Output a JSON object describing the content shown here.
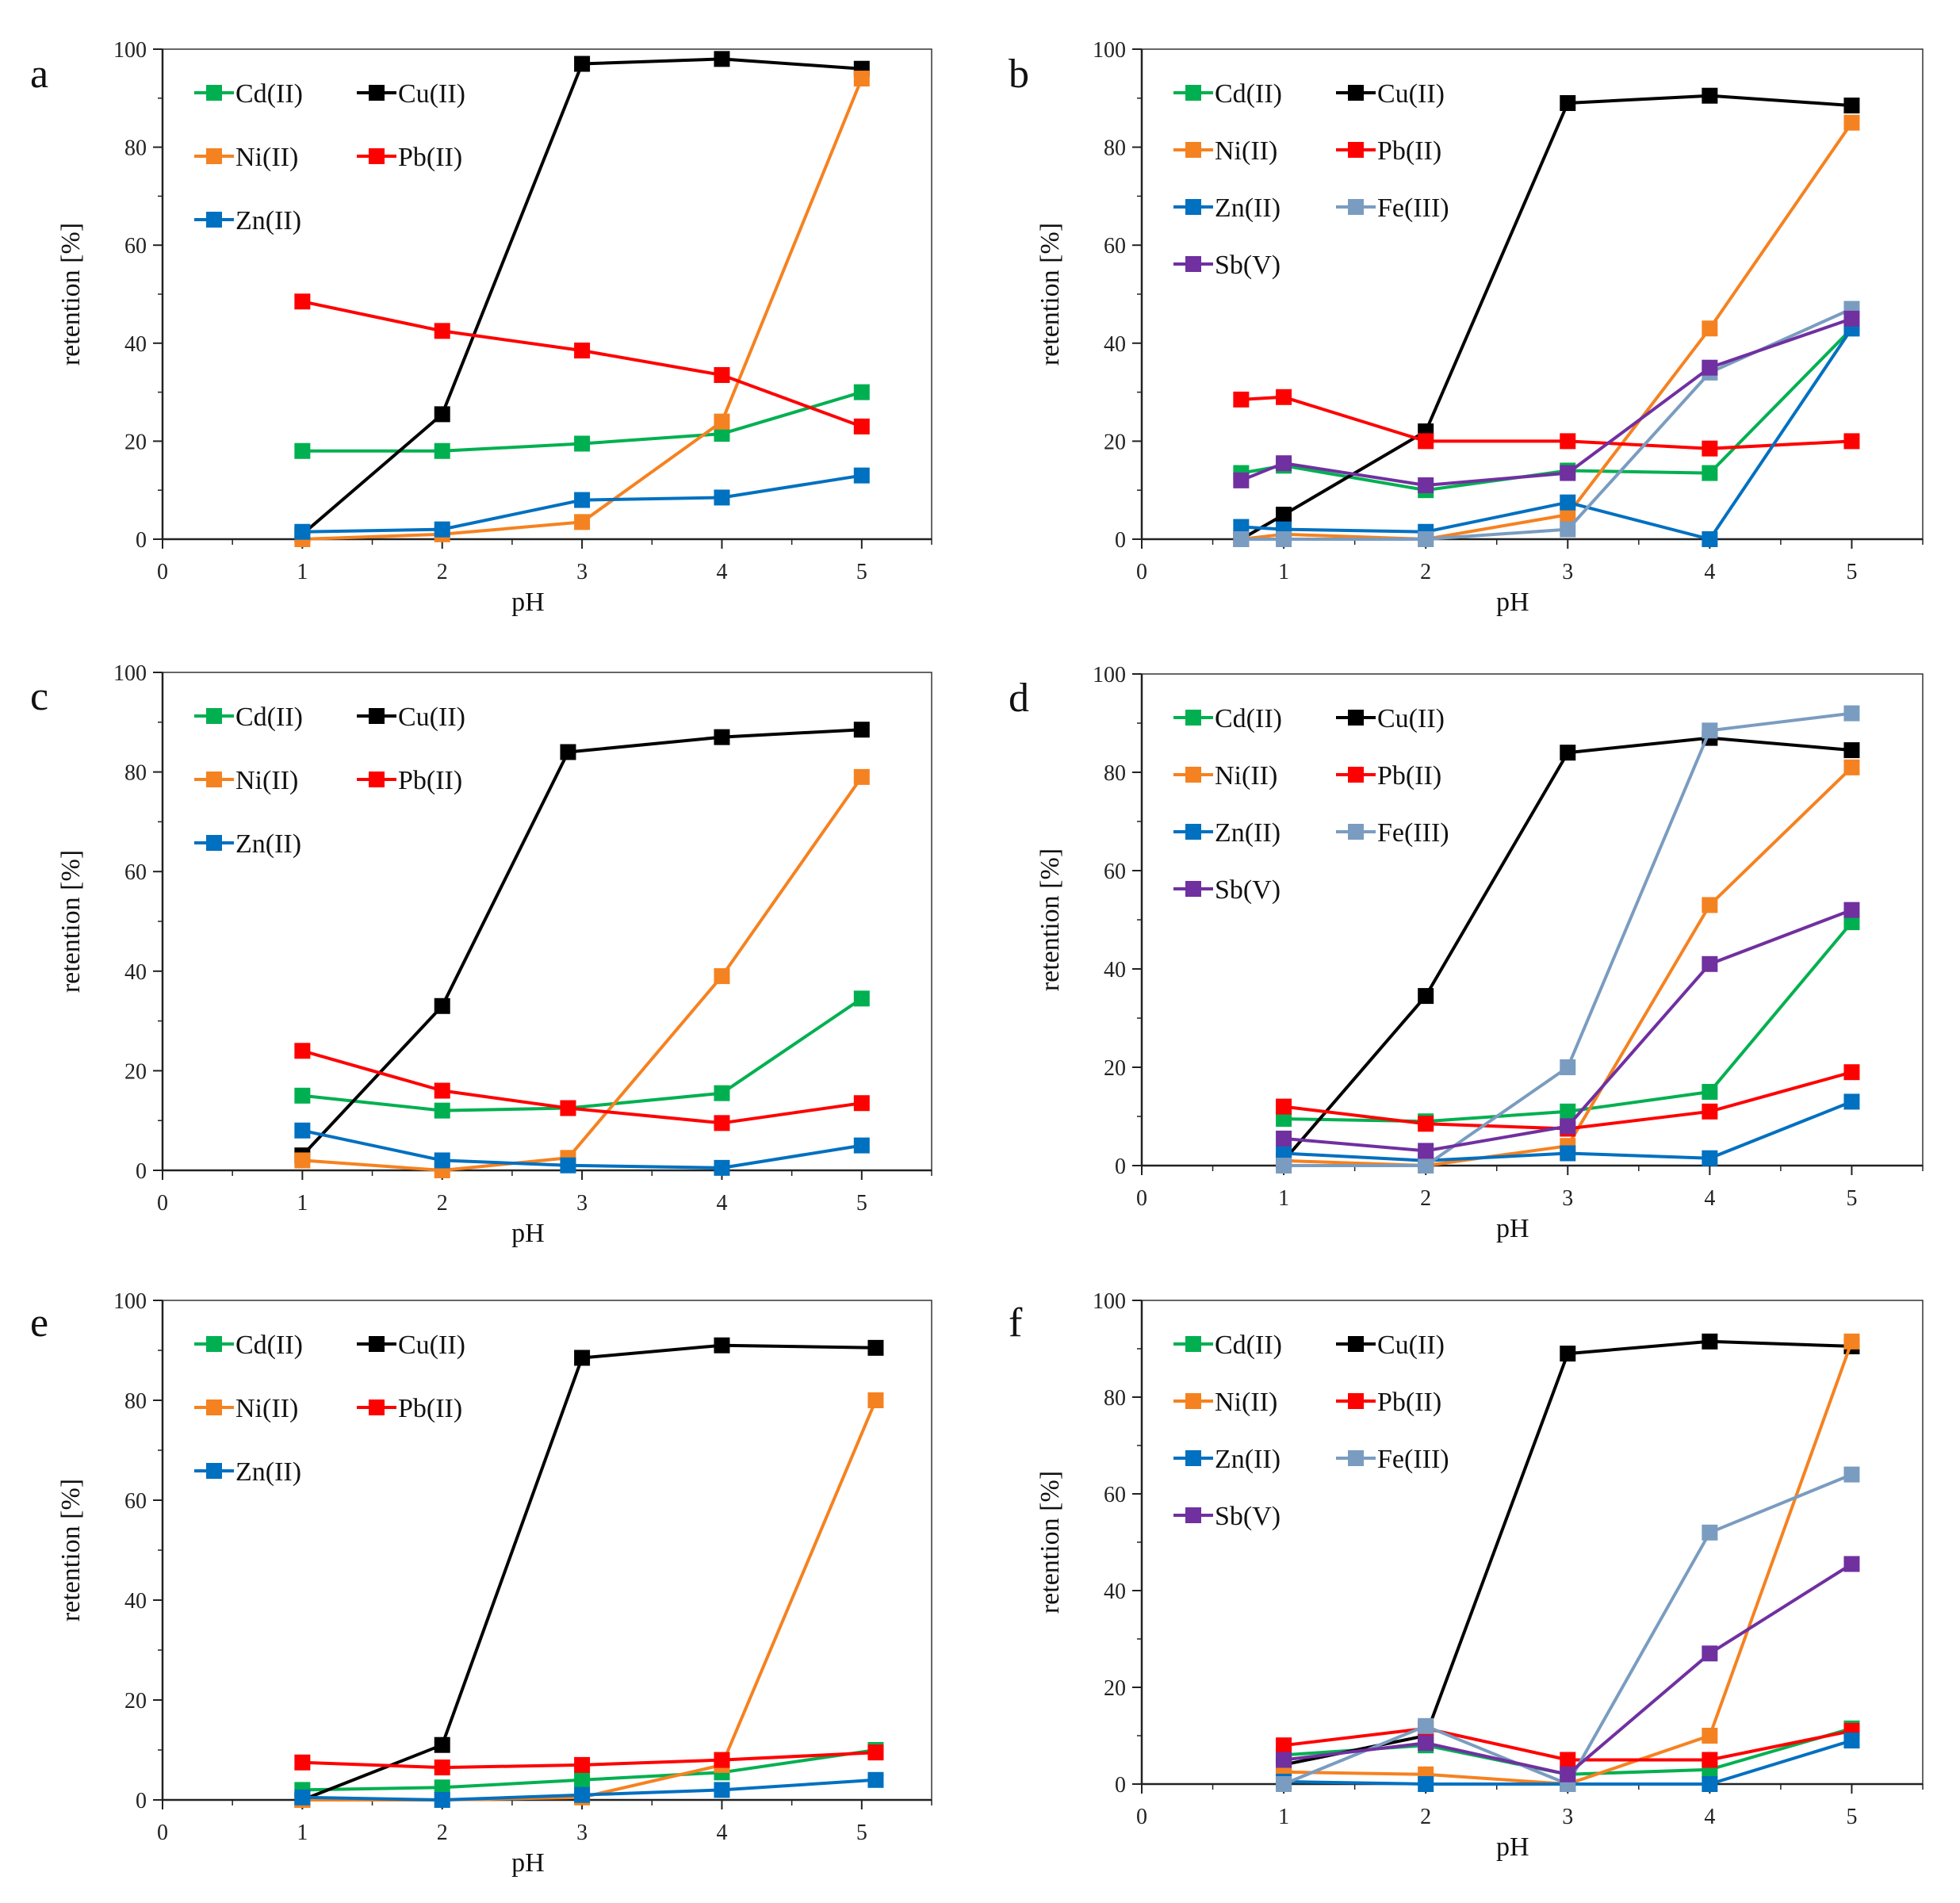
{
  "colors": {
    "Cd(II)": "#00b050",
    "Cu(II)": "#000000",
    "Ni(II)": "#f58220",
    "Pb(II)": "#ff0000",
    "Zn(II)": "#0070c0",
    "Fe(III)": "#7a9cc0",
    "Sb(V)": "#7030a0"
  },
  "chart_data": [
    {
      "panel": "a",
      "type": "line",
      "xlabel": "pH",
      "ylabel": "retention [%]",
      "xlim": [
        0,
        5.5
      ],
      "ylim": [
        0,
        100
      ],
      "xticks": [
        "0",
        "1",
        "2",
        "3",
        "4",
        "5"
      ],
      "yticks": [
        "0",
        "20",
        "40",
        "60",
        "80",
        "100"
      ],
      "legend": [
        "Cd(II)",
        "Cu(II)",
        "Ni(II)",
        "Pb(II)",
        "Zn(II)"
      ],
      "series": [
        {
          "name": "Cd(II)",
          "x": [
            1,
            2,
            3,
            4,
            5
          ],
          "values": [
            18,
            18,
            19.5,
            21.5,
            30
          ]
        },
        {
          "name": "Cu(II)",
          "x": [
            1,
            2,
            3,
            4,
            5
          ],
          "values": [
            1,
            25.5,
            97,
            98,
            96
          ]
        },
        {
          "name": "Ni(II)",
          "x": [
            1,
            2,
            3,
            4,
            5
          ],
          "values": [
            0,
            1,
            3.5,
            24,
            94
          ]
        },
        {
          "name": "Pb(II)",
          "x": [
            1,
            2,
            3,
            4,
            5
          ],
          "values": [
            48.5,
            42.5,
            38.5,
            33.5,
            23
          ]
        },
        {
          "name": "Zn(II)",
          "x": [
            1,
            2,
            3,
            4,
            5
          ],
          "values": [
            1.5,
            2,
            8,
            8.5,
            13
          ]
        }
      ]
    },
    {
      "panel": "b",
      "type": "line",
      "xlabel": "pH",
      "ylabel": "retention [%]",
      "xlim": [
        0,
        5.5
      ],
      "ylim": [
        0,
        100
      ],
      "xticks": [
        "0",
        "1",
        "2",
        "3",
        "4",
        "5"
      ],
      "yticks": [
        "0",
        "20",
        "40",
        "60",
        "80",
        "100"
      ],
      "legend": [
        "Cd(II)",
        "Cu(II)",
        "Ni(II)",
        "Pb(II)",
        "Zn(II)",
        "Fe(III)",
        "Sb(V)"
      ],
      "series": [
        {
          "name": "Cd(II)",
          "x": [
            0.7,
            1,
            2,
            3,
            4,
            5
          ],
          "values": [
            13.5,
            15,
            10,
            14,
            13.5,
            43
          ]
        },
        {
          "name": "Cu(II)",
          "x": [
            0.7,
            1,
            2,
            3,
            4,
            5
          ],
          "values": [
            0,
            5,
            22,
            89,
            90.5,
            88.5
          ]
        },
        {
          "name": "Ni(II)",
          "x": [
            0.7,
            1,
            2,
            3,
            4,
            5
          ],
          "values": [
            0,
            1,
            0,
            5,
            43,
            85
          ]
        },
        {
          "name": "Pb(II)",
          "x": [
            0.7,
            1,
            2,
            3,
            4,
            5
          ],
          "values": [
            28.5,
            29,
            20,
            20,
            18.5,
            20
          ]
        },
        {
          "name": "Zn(II)",
          "x": [
            0.7,
            1,
            2,
            3,
            4,
            5
          ],
          "values": [
            2.5,
            2,
            1.5,
            7.5,
            0,
            43
          ]
        },
        {
          "name": "Fe(III)",
          "x": [
            0.7,
            1,
            2,
            3,
            4,
            5
          ],
          "values": [
            0,
            0,
            0,
            2,
            34,
            47
          ]
        },
        {
          "name": "Sb(V)",
          "x": [
            0.7,
            1,
            2,
            3,
            4,
            5
          ],
          "values": [
            12,
            15.5,
            11,
            13.5,
            35,
            45
          ]
        }
      ]
    },
    {
      "panel": "c",
      "type": "line",
      "xlabel": "pH",
      "ylabel": "retention [%]",
      "xlim": [
        0,
        5.5
      ],
      "ylim": [
        0,
        100
      ],
      "xticks": [
        "0",
        "1",
        "2",
        "3",
        "4",
        "5"
      ],
      "yticks": [
        "0",
        "20",
        "40",
        "60",
        "80",
        "100"
      ],
      "legend": [
        "Cd(II)",
        "Cu(II)",
        "Ni(II)",
        "Pb(II)",
        "Zn(II)"
      ],
      "series": [
        {
          "name": "Cd(II)",
          "x": [
            1,
            2,
            2.9,
            4,
            5
          ],
          "values": [
            15,
            12,
            12.5,
            15.5,
            34.5
          ]
        },
        {
          "name": "Cu(II)",
          "x": [
            1,
            2,
            2.9,
            4,
            5
          ],
          "values": [
            3,
            33,
            84,
            87,
            88.5
          ]
        },
        {
          "name": "Ni(II)",
          "x": [
            1,
            2,
            2.9,
            4,
            5
          ],
          "values": [
            2,
            0,
            2.5,
            39,
            79
          ]
        },
        {
          "name": "Pb(II)",
          "x": [
            1,
            2,
            2.9,
            4,
            5
          ],
          "values": [
            24,
            16,
            12.5,
            9.5,
            13.5
          ]
        },
        {
          "name": "Zn(II)",
          "x": [
            1,
            2,
            2.9,
            4,
            5
          ],
          "values": [
            8,
            2,
            1,
            0.5,
            5
          ]
        }
      ]
    },
    {
      "panel": "d",
      "type": "line",
      "xlabel": "pH",
      "ylabel": "retention [%]",
      "xlim": [
        0,
        5.5
      ],
      "ylim": [
        0,
        100
      ],
      "xticks": [
        "0",
        "1",
        "2",
        "3",
        "4",
        "5"
      ],
      "yticks": [
        "0",
        "20",
        "40",
        "60",
        "80",
        "100"
      ],
      "legend": [
        "Cd(II)",
        "Cu(II)",
        "Ni(II)",
        "Pb(II)",
        "Zn(II)",
        "Fe(III)",
        "Sb(V)"
      ],
      "series": [
        {
          "name": "Cd(II)",
          "x": [
            1,
            2,
            3,
            4,
            5
          ],
          "values": [
            9.5,
            9,
            11,
            15,
            49.5
          ]
        },
        {
          "name": "Cu(II)",
          "x": [
            1,
            2,
            3,
            4,
            5
          ],
          "values": [
            1,
            34.5,
            84,
            87,
            84.5
          ]
        },
        {
          "name": "Ni(II)",
          "x": [
            1,
            2,
            3,
            4,
            5
          ],
          "values": [
            1,
            0,
            4,
            53,
            81
          ]
        },
        {
          "name": "Pb(II)",
          "x": [
            1,
            2,
            3,
            4,
            5
          ],
          "values": [
            12,
            8.5,
            7.5,
            11,
            19
          ]
        },
        {
          "name": "Zn(II)",
          "x": [
            1,
            2,
            3,
            4,
            5
          ],
          "values": [
            2.5,
            1,
            2.5,
            1.5,
            13
          ]
        },
        {
          "name": "Fe(III)",
          "x": [
            1,
            2,
            3,
            4,
            5
          ],
          "values": [
            0,
            0,
            20,
            88.5,
            92
          ]
        },
        {
          "name": "Sb(V)",
          "x": [
            1,
            2,
            3,
            4,
            5
          ],
          "values": [
            5.5,
            3,
            8,
            41,
            52
          ]
        }
      ]
    },
    {
      "panel": "e",
      "type": "line",
      "xlabel": "pH",
      "ylabel": "retention [%]",
      "xlim": [
        0,
        5.5
      ],
      "ylim": [
        0,
        100
      ],
      "xticks": [
        "0",
        "1",
        "2",
        "3",
        "4",
        "5"
      ],
      "yticks": [
        "0",
        "20",
        "40",
        "60",
        "80",
        "100"
      ],
      "legend": [
        "Cd(II)",
        "Cu(II)",
        "Ni(II)",
        "Pb(II)",
        "Zn(II)"
      ],
      "series": [
        {
          "name": "Cd(II)",
          "x": [
            1,
            2,
            3,
            4,
            5.1
          ],
          "values": [
            2,
            2.5,
            4,
            5.5,
            10
          ]
        },
        {
          "name": "Cu(II)",
          "x": [
            1,
            2,
            3,
            4,
            5.1
          ],
          "values": [
            0,
            11,
            88.5,
            91,
            90.5
          ]
        },
        {
          "name": "Ni(II)",
          "x": [
            1,
            2,
            3,
            4,
            5.1
          ],
          "values": [
            0,
            0,
            0.5,
            7,
            80
          ]
        },
        {
          "name": "Pb(II)",
          "x": [
            1,
            2,
            3,
            4,
            5.1
          ],
          "values": [
            7.5,
            6.5,
            7,
            8,
            9.5
          ]
        },
        {
          "name": "Zn(II)",
          "x": [
            1,
            2,
            3,
            4,
            5.1
          ],
          "values": [
            0.5,
            0,
            1,
            2,
            4
          ]
        }
      ]
    },
    {
      "panel": "f",
      "type": "line",
      "xlabel": "pH",
      "ylabel": "retention [%]",
      "xlim": [
        0,
        5.5
      ],
      "ylim": [
        0,
        100
      ],
      "xticks": [
        "0",
        "1",
        "2",
        "3",
        "4",
        "5"
      ],
      "yticks": [
        "0",
        "20",
        "40",
        "60",
        "80",
        "100"
      ],
      "legend": [
        "Cd(II)",
        "Cu(II)",
        "Ni(II)",
        "Pb(II)",
        "Zn(II)",
        "Fe(III)",
        "Sb(V)"
      ],
      "series": [
        {
          "name": "Cd(II)",
          "x": [
            1,
            2,
            3,
            4,
            5
          ],
          "values": [
            6,
            8,
            2,
            3,
            11.5
          ]
        },
        {
          "name": "Cu(II)",
          "x": [
            1,
            2,
            3,
            4,
            5
          ],
          "values": [
            4,
            10,
            89,
            91.5,
            90.5
          ]
        },
        {
          "name": "Ni(II)",
          "x": [
            1,
            2,
            3,
            4,
            5
          ],
          "values": [
            2.5,
            2,
            0,
            10,
            91.5
          ]
        },
        {
          "name": "Pb(II)",
          "x": [
            1,
            2,
            3,
            4,
            5
          ],
          "values": [
            8,
            11.5,
            5,
            5,
            11
          ]
        },
        {
          "name": "Zn(II)",
          "x": [
            1,
            2,
            3,
            4,
            5
          ],
          "values": [
            0.5,
            0,
            0,
            0,
            9
          ]
        },
        {
          "name": "Fe(III)",
          "x": [
            1,
            2,
            3,
            4,
            5
          ],
          "values": [
            0,
            12,
            0,
            52,
            64
          ]
        },
        {
          "name": "Sb(V)",
          "x": [
            1,
            2,
            3,
            4,
            5
          ],
          "values": [
            5,
            8.5,
            2,
            27,
            45.5
          ]
        }
      ]
    }
  ]
}
